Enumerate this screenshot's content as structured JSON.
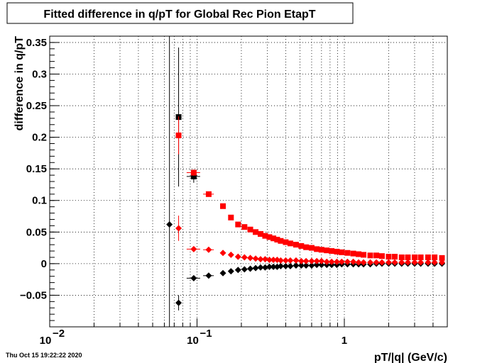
{
  "chart_data": {
    "type": "scatter",
    "title": "Fitted difference in q/pT for Global Rec Pion EtapT",
    "xlabel": "pT/|q| (GeV/c)",
    "ylabel": "difference in q/pT",
    "xscale": "log",
    "xlim": [
      0.01,
      5
    ],
    "ylim": [
      -0.1,
      0.36
    ],
    "grid": true,
    "x_tick_labels": [
      {
        "label": "10",
        "sup": "−2",
        "value": 0.01
      },
      {
        "label": "10",
        "sup": "−1",
        "value": 0.1
      },
      {
        "label": "1",
        "sup": "",
        "value": 1
      }
    ],
    "y_ticks": [
      -0.05,
      0,
      0.05,
      0.1,
      0.15,
      0.2,
      0.25,
      0.3,
      0.35
    ],
    "y_tick_labels": [
      "−0.05",
      "0",
      "0.05",
      "0.1",
      "0.15",
      "0.2",
      "0.25",
      "0.3",
      "0.35"
    ],
    "vertical_lines": [
      0.065
    ],
    "series": [
      {
        "marker": "square",
        "color": "#000000",
        "points": [
          {
            "x": 0.075,
            "y": 0.232,
            "yerr": 0.11
          },
          {
            "x": 0.095,
            "y": 0.138,
            "yerr": 0.01,
            "xerr": 0.01
          }
        ]
      },
      {
        "marker": "square",
        "color": "#ff0000",
        "points": [
          {
            "x": 0.075,
            "y": 0.203,
            "yerr": 0.03
          },
          {
            "x": 0.095,
            "y": 0.144,
            "yerr": 0.005,
            "xerr": 0.01
          },
          {
            "x": 0.12,
            "y": 0.11,
            "xerr": 0.01
          },
          {
            "x": 0.15,
            "y": 0.091
          },
          {
            "x": 0.17,
            "y": 0.073
          },
          {
            "x": 0.19,
            "y": 0.062
          },
          {
            "x": 0.21,
            "y": 0.058
          },
          {
            "x": 0.23,
            "y": 0.054
          },
          {
            "x": 0.25,
            "y": 0.05
          },
          {
            "x": 0.27,
            "y": 0.047
          },
          {
            "x": 0.29,
            "y": 0.044
          },
          {
            "x": 0.31,
            "y": 0.042
          },
          {
            "x": 0.33,
            "y": 0.04
          },
          {
            "x": 0.35,
            "y": 0.038
          },
          {
            "x": 0.37,
            "y": 0.036
          },
          {
            "x": 0.4,
            "y": 0.034
          },
          {
            "x": 0.43,
            "y": 0.032
          },
          {
            "x": 0.47,
            "y": 0.03
          },
          {
            "x": 0.51,
            "y": 0.028
          },
          {
            "x": 0.55,
            "y": 0.026
          },
          {
            "x": 0.6,
            "y": 0.025
          },
          {
            "x": 0.65,
            "y": 0.023
          },
          {
            "x": 0.7,
            "y": 0.022
          },
          {
            "x": 0.76,
            "y": 0.021
          },
          {
            "x": 0.82,
            "y": 0.02
          },
          {
            "x": 0.89,
            "y": 0.019
          },
          {
            "x": 0.96,
            "y": 0.018
          },
          {
            "x": 1.05,
            "y": 0.017
          },
          {
            "x": 1.15,
            "y": 0.016
          },
          {
            "x": 1.25,
            "y": 0.015
          },
          {
            "x": 1.35,
            "y": 0.014
          },
          {
            "x": 1.5,
            "y": 0.013
          },
          {
            "x": 1.65,
            "y": 0.013
          },
          {
            "x": 1.8,
            "y": 0.012
          },
          {
            "x": 2.0,
            "y": 0.011
          },
          {
            "x": 2.2,
            "y": 0.011
          },
          {
            "x": 2.45,
            "y": 0.01
          },
          {
            "x": 2.7,
            "y": 0.01
          },
          {
            "x": 3.0,
            "y": 0.01
          },
          {
            "x": 3.3,
            "y": 0.01
          },
          {
            "x": 3.7,
            "y": 0.01
          },
          {
            "x": 4.1,
            "y": 0.01
          },
          {
            "x": 4.6,
            "y": 0.009
          }
        ]
      },
      {
        "marker": "diamond",
        "color": "#000000",
        "points": [
          {
            "x": 0.065,
            "y": 0.062
          },
          {
            "x": 0.075,
            "y": -0.062,
            "yerr": 0.012
          },
          {
            "x": 0.095,
            "y": -0.023,
            "xerr": 0.01
          },
          {
            "x": 0.12,
            "y": -0.019,
            "xerr": 0.01
          },
          {
            "x": 0.15,
            "y": -0.015
          },
          {
            "x": 0.17,
            "y": -0.012
          },
          {
            "x": 0.19,
            "y": -0.01
          },
          {
            "x": 0.21,
            "y": -0.009
          },
          {
            "x": 0.23,
            "y": -0.008
          },
          {
            "x": 0.25,
            "y": -0.007
          },
          {
            "x": 0.27,
            "y": -0.006
          },
          {
            "x": 0.29,
            "y": -0.006
          },
          {
            "x": 0.31,
            "y": -0.005
          },
          {
            "x": 0.33,
            "y": -0.005
          },
          {
            "x": 0.35,
            "y": -0.005
          },
          {
            "x": 0.37,
            "y": -0.004
          },
          {
            "x": 0.4,
            "y": -0.004
          },
          {
            "x": 0.43,
            "y": -0.004
          },
          {
            "x": 0.47,
            "y": -0.003
          },
          {
            "x": 0.51,
            "y": -0.003
          },
          {
            "x": 0.55,
            "y": -0.003
          },
          {
            "x": 0.6,
            "y": -0.003
          },
          {
            "x": 0.65,
            "y": -0.002
          },
          {
            "x": 0.7,
            "y": -0.002
          },
          {
            "x": 0.76,
            "y": -0.002
          },
          {
            "x": 0.82,
            "y": -0.002
          },
          {
            "x": 0.89,
            "y": -0.002
          },
          {
            "x": 0.96,
            "y": -0.001
          },
          {
            "x": 1.05,
            "y": -0.001
          },
          {
            "x": 1.15,
            "y": -0.001
          },
          {
            "x": 1.25,
            "y": -0.001
          },
          {
            "x": 1.35,
            "y": -0.001
          },
          {
            "x": 1.5,
            "y": -0.001
          },
          {
            "x": 1.65,
            "y": 0.0
          },
          {
            "x": 1.8,
            "y": 0.0
          },
          {
            "x": 2.0,
            "y": 0.0
          },
          {
            "x": 2.2,
            "y": 0.0
          },
          {
            "x": 2.45,
            "y": 0.0
          },
          {
            "x": 2.7,
            "y": 0.0
          },
          {
            "x": 3.0,
            "y": 0.0
          },
          {
            "x": 3.3,
            "y": 0.0
          },
          {
            "x": 3.7,
            "y": 0.0
          },
          {
            "x": 4.1,
            "y": 0.0
          },
          {
            "x": 4.6,
            "y": 0.0
          }
        ]
      },
      {
        "marker": "diamond",
        "color": "#ff0000",
        "points": [
          {
            "x": 0.075,
            "y": 0.056,
            "yerr": 0.02
          },
          {
            "x": 0.095,
            "y": 0.023,
            "xerr": 0.01
          },
          {
            "x": 0.12,
            "y": 0.022,
            "xerr": 0.01
          },
          {
            "x": 0.15,
            "y": 0.017
          },
          {
            "x": 0.17,
            "y": 0.014
          },
          {
            "x": 0.19,
            "y": 0.011
          },
          {
            "x": 0.21,
            "y": 0.01
          },
          {
            "x": 0.23,
            "y": 0.009
          },
          {
            "x": 0.25,
            "y": 0.008
          },
          {
            "x": 0.27,
            "y": 0.007
          },
          {
            "x": 0.29,
            "y": 0.007
          },
          {
            "x": 0.31,
            "y": 0.006
          },
          {
            "x": 0.33,
            "y": 0.006
          },
          {
            "x": 0.35,
            "y": 0.006
          },
          {
            "x": 0.37,
            "y": 0.005
          },
          {
            "x": 0.4,
            "y": 0.005
          },
          {
            "x": 0.43,
            "y": 0.005
          },
          {
            "x": 0.47,
            "y": 0.005
          },
          {
            "x": 0.51,
            "y": 0.004
          },
          {
            "x": 0.55,
            "y": 0.004
          },
          {
            "x": 0.6,
            "y": 0.004
          },
          {
            "x": 0.65,
            "y": 0.004
          },
          {
            "x": 0.7,
            "y": 0.004
          },
          {
            "x": 0.76,
            "y": 0.003
          },
          {
            "x": 0.82,
            "y": 0.003
          },
          {
            "x": 0.89,
            "y": 0.003
          },
          {
            "x": 0.96,
            "y": 0.003
          },
          {
            "x": 1.05,
            "y": 0.003
          },
          {
            "x": 1.15,
            "y": 0.003
          },
          {
            "x": 1.25,
            "y": 0.002
          },
          {
            "x": 1.35,
            "y": 0.002
          },
          {
            "x": 1.5,
            "y": 0.002
          },
          {
            "x": 1.65,
            "y": 0.002
          },
          {
            "x": 1.8,
            "y": 0.002
          },
          {
            "x": 2.0,
            "y": 0.002
          },
          {
            "x": 2.2,
            "y": 0.002
          },
          {
            "x": 2.45,
            "y": 0.002
          },
          {
            "x": 2.7,
            "y": 0.002
          },
          {
            "x": 3.0,
            "y": 0.002
          },
          {
            "x": 3.3,
            "y": 0.002
          },
          {
            "x": 3.7,
            "y": 0.002
          },
          {
            "x": 4.1,
            "y": 0.002
          },
          {
            "x": 4.6,
            "y": 0.002
          }
        ]
      }
    ],
    "timestamp": "Thu Oct 15 19:22:22 2020"
  }
}
